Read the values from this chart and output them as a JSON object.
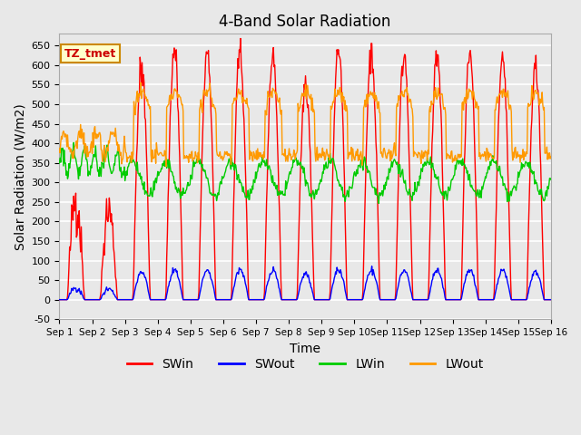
{
  "title": "4-Band Solar Radiation",
  "xlabel": "Time",
  "ylabel": "Solar Radiation (W/m2)",
  "ylim": [
    -50,
    680
  ],
  "xlim": [
    0,
    15
  ],
  "annotation": "TZ_tmet",
  "legend_labels": [
    "SWin",
    "SWout",
    "LWin",
    "LWout"
  ],
  "legend_colors": [
    "#ff0000",
    "#0000ff",
    "#00cc00",
    "#ff9900"
  ],
  "bg_color": "#e8e8e8",
  "grid_color": "#ffffff",
  "xtick_labels": [
    "Sep 1",
    "Sep 2",
    "Sep 3",
    "Sep 4",
    "Sep 5",
    "Sep 6",
    "Sep 7",
    "Sep 8",
    "Sep 9",
    "Sep 10",
    "Sep 11",
    "Sep 12",
    "Sep 13",
    "Sep 14",
    "Sep 15",
    "Sep 16"
  ],
  "xtick_positions": [
    0,
    1,
    2,
    3,
    4,
    5,
    6,
    7,
    8,
    9,
    10,
    11,
    12,
    13,
    14,
    15
  ],
  "ytick_labels": [
    "-50",
    "0",
    "50",
    "100",
    "150",
    "200",
    "250",
    "300",
    "350",
    "400",
    "450",
    "500",
    "550",
    "600",
    "650"
  ],
  "ytick_values": [
    -50,
    0,
    50,
    100,
    150,
    200,
    250,
    300,
    350,
    400,
    450,
    500,
    550,
    600,
    650
  ],
  "sw_peaks": [
    260,
    230,
    590,
    640,
    630,
    630,
    630,
    560,
    645,
    635,
    630,
    625,
    620,
    610,
    600
  ],
  "sw_noise": [
    0.2,
    0.15,
    0.05,
    0.03,
    0.03,
    0.03,
    0.03,
    0.04,
    0.03,
    0.03,
    0.03,
    0.03,
    0.03,
    0.03,
    0.03
  ],
  "sw_ratio": 0.12,
  "lwin_base_early": 350,
  "lwin_base_late": 310,
  "lwout_base_night": 370,
  "lwout_base_day": 480,
  "lwout_day_extra": 50
}
